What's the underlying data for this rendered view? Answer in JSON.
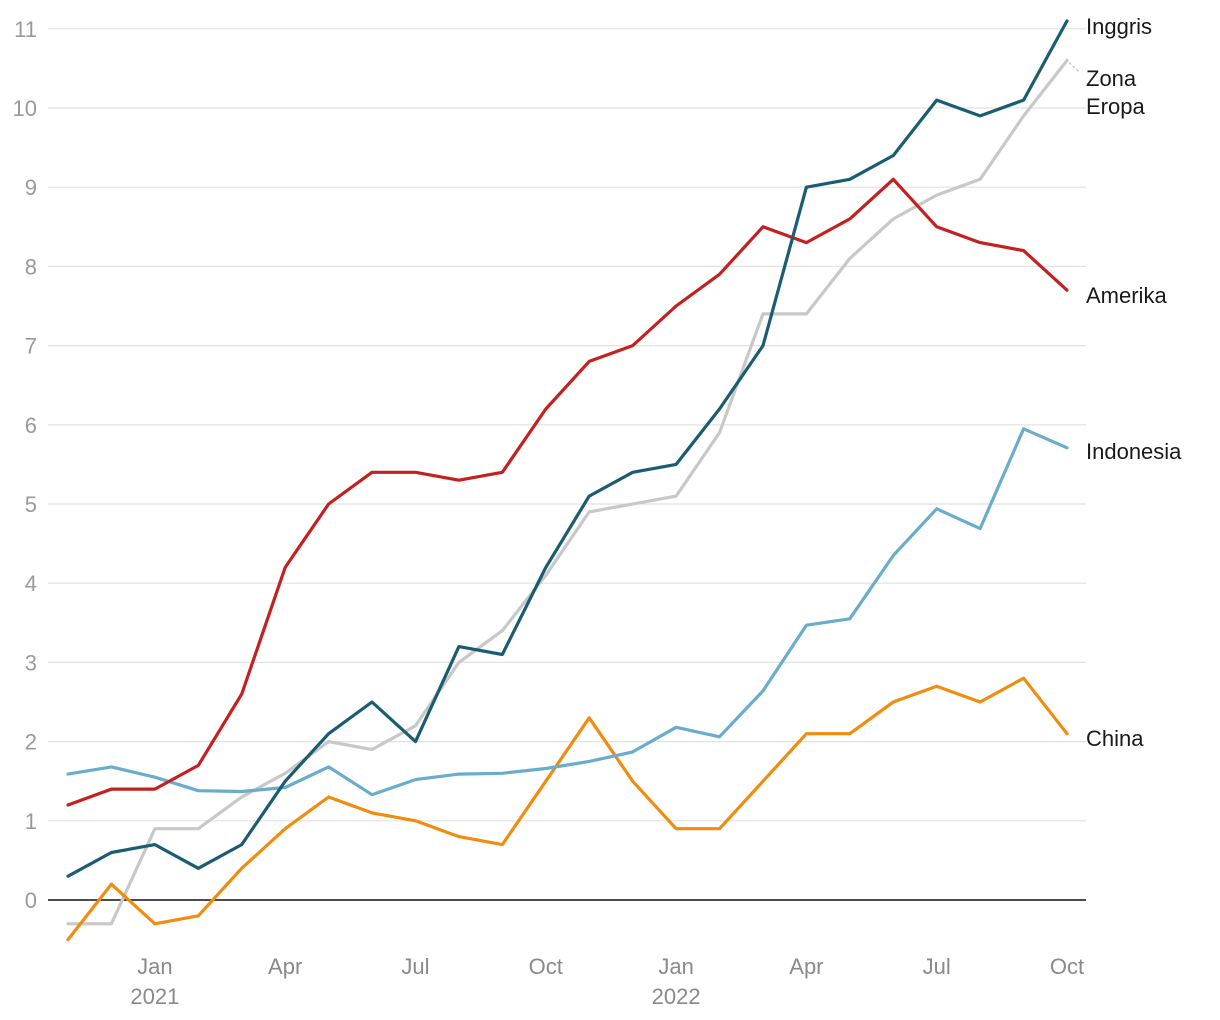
{
  "chart_data": {
    "type": "line",
    "x": [
      "2020-11",
      "2020-12",
      "2021-01",
      "2021-02",
      "2021-03",
      "2021-04",
      "2021-05",
      "2021-06",
      "2021-07",
      "2021-08",
      "2021-09",
      "2021-10",
      "2021-11",
      "2021-12",
      "2022-01",
      "2022-02",
      "2022-03",
      "2022-04",
      "2022-05",
      "2022-06",
      "2022-07",
      "2022-08",
      "2022-09",
      "2022-10"
    ],
    "ylim": [
      -0.6,
      11.2
    ],
    "yticks": [
      0,
      1,
      2,
      3,
      4,
      5,
      6,
      7,
      8,
      9,
      10,
      11
    ],
    "xticks": [
      {
        "month": "2021-01",
        "label": "Jan",
        "sublabel": "2021"
      },
      {
        "month": "2021-04",
        "label": "Apr",
        "sublabel": ""
      },
      {
        "month": "2021-07",
        "label": "Jul",
        "sublabel": ""
      },
      {
        "month": "2021-10",
        "label": "Oct",
        "sublabel": ""
      },
      {
        "month": "2022-01",
        "label": "Jan",
        "sublabel": "2022"
      },
      {
        "month": "2022-04",
        "label": "Apr",
        "sublabel": ""
      },
      {
        "month": "2022-07",
        "label": "Jul",
        "sublabel": ""
      },
      {
        "month": "2022-10",
        "label": "Oct",
        "sublabel": ""
      }
    ],
    "grid": true,
    "legend": "direct labels at right end of each line",
    "series": [
      {
        "name": "Zona Eropa",
        "color": "#c8c8c8",
        "label_lines": [
          "Zona",
          "Eropa"
        ],
        "values": [
          -0.3,
          -0.3,
          0.9,
          0.9,
          1.3,
          1.6,
          2.0,
          1.9,
          2.2,
          3.0,
          3.4,
          4.1,
          4.9,
          5.0,
          5.1,
          5.9,
          7.4,
          7.4,
          8.1,
          8.6,
          8.9,
          9.1,
          9.9,
          10.6
        ]
      },
      {
        "name": "China",
        "color": "#f28c0f",
        "label_lines": [
          "China"
        ],
        "values": [
          -0.5,
          0.2,
          -0.3,
          -0.2,
          0.4,
          0.9,
          1.3,
          1.1,
          1.0,
          0.8,
          0.7,
          1.5,
          2.3,
          1.5,
          0.9,
          0.9,
          1.5,
          2.1,
          2.1,
          2.5,
          2.7,
          2.5,
          2.8,
          2.1
        ]
      },
      {
        "name": "Indonesia",
        "color": "#6aaccc",
        "label_lines": [
          "Indonesia"
        ],
        "values": [
          1.59,
          1.68,
          1.55,
          1.38,
          1.37,
          1.42,
          1.68,
          1.33,
          1.52,
          1.59,
          1.6,
          1.66,
          1.75,
          1.87,
          2.18,
          2.06,
          2.64,
          3.47,
          3.55,
          4.35,
          4.94,
          4.69,
          5.95,
          5.71
        ]
      },
      {
        "name": "Amerika",
        "color": "#c4201f",
        "label_lines": [
          "Amerika"
        ],
        "values": [
          1.2,
          1.4,
          1.4,
          1.7,
          2.6,
          4.2,
          5.0,
          5.4,
          5.4,
          5.3,
          5.4,
          6.2,
          6.8,
          7.0,
          7.5,
          7.9,
          8.5,
          8.3,
          8.6,
          9.1,
          8.5,
          8.3,
          8.2,
          7.7
        ]
      },
      {
        "name": "Inggris",
        "color": "#1a5c73",
        "label_lines": [
          "Inggris"
        ],
        "values": [
          0.3,
          0.6,
          0.7,
          0.4,
          0.7,
          1.5,
          2.1,
          2.5,
          2.0,
          3.2,
          3.1,
          4.2,
          5.1,
          5.4,
          5.5,
          6.2,
          7.0,
          9.0,
          9.1,
          9.4,
          10.1,
          9.9,
          10.1,
          11.1
        ]
      }
    ]
  }
}
